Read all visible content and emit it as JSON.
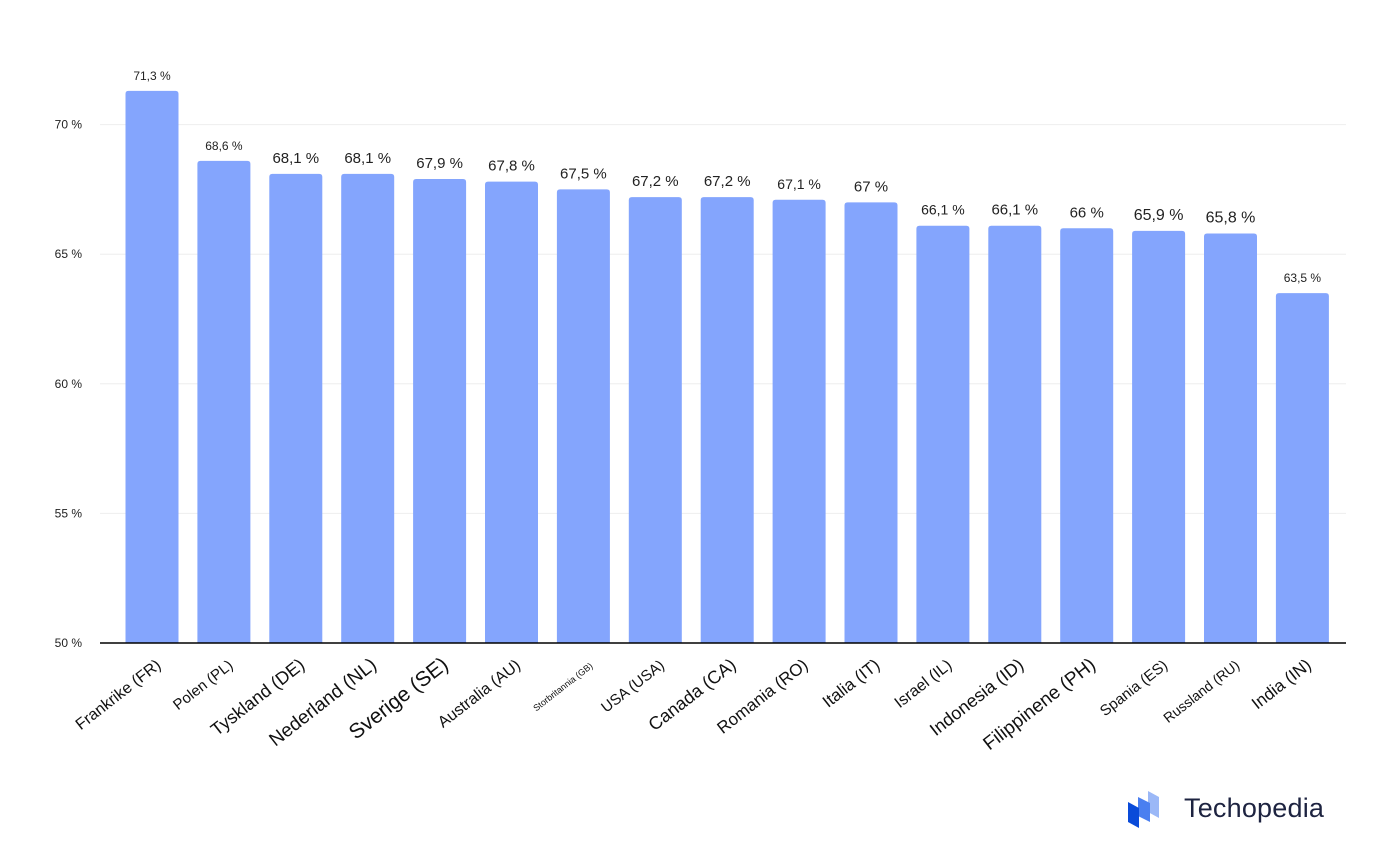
{
  "chart_data": {
    "type": "bar",
    "categories": [
      "Frankrike (FR)",
      "Polen (PL)",
      "Tyskland (DE)",
      "Nederland (NL)",
      "Sverige (SE)",
      "Australia (AU)",
      "Storbritannia (GB)",
      "USA (USA)",
      "Canada (CA)",
      "Romania (RO)",
      "Italia (IT)",
      "Israel (IL)",
      "Indonesia (ID)",
      "Filippinene (PH)",
      "Spania (ES)",
      "Russland (RU)",
      "India (IN)"
    ],
    "values": [
      71.3,
      68.6,
      68.1,
      68.1,
      67.9,
      67.8,
      67.5,
      67.2,
      67.2,
      67.1,
      67,
      66.1,
      66.1,
      66,
      65.9,
      65.8,
      63.5
    ],
    "data_labels": [
      "71,3 %",
      "68,6 %",
      "68,1 %",
      "68,1 %",
      "67,9 %",
      "67,8 %",
      "67,5 %",
      "67,2 %",
      "67,2 %",
      "67,1 %",
      "67 %",
      "66,1 %",
      "66,1 %",
      "66 %",
      "65,9 %",
      "65,8 %",
      "63,5 %"
    ],
    "yticks": [
      50,
      55,
      60,
      65,
      70
    ],
    "ytick_labels": [
      "50 %",
      "55 %",
      "60 %",
      "65 %",
      "70 %"
    ],
    "ylim": [
      50,
      72
    ],
    "title": "",
    "xlabel": "",
    "ylabel": "",
    "grid": true,
    "bar_color": "#84a5fd"
  },
  "logo": {
    "text": "Techopedia",
    "icon": "techopedia-logo-icon",
    "colors": [
      "#0a4bd9",
      "#4a7ff0",
      "#9bb8f7"
    ]
  }
}
